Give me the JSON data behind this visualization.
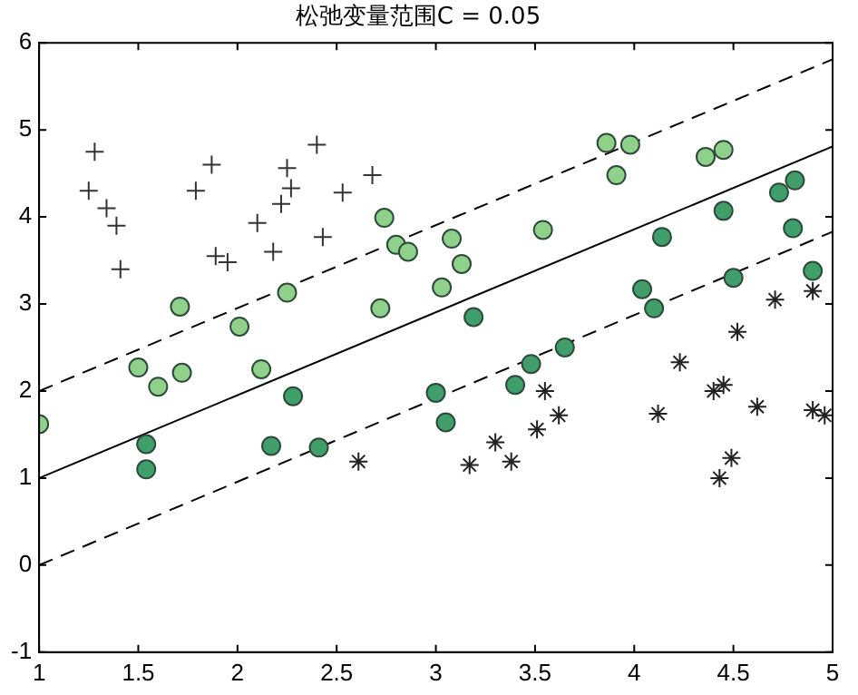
{
  "chart_data": {
    "type": "scatter",
    "title": "松弛变量范围C = 0.05",
    "xlim": [
      1,
      5
    ],
    "xticks": [
      1,
      1.5,
      2,
      2.5,
      3,
      3.5,
      4,
      4.5,
      5
    ],
    "ylim": [
      -1,
      6
    ],
    "yticks": [
      -1,
      0,
      1,
      2,
      3,
      4,
      5,
      6
    ],
    "grid": false,
    "legend": false,
    "series": [
      {
        "marker": "cross",
        "color": "#333333",
        "x": [
          1.28,
          1.25,
          1.34,
          1.39,
          1.41,
          1.87,
          1.79,
          1.89,
          1.95,
          2.1,
          2.18,
          2.25,
          2.27,
          2.22,
          2.4,
          2.43,
          2.53,
          2.68
        ],
        "values": [
          4.75,
          4.3,
          4.1,
          3.9,
          3.4,
          4.6,
          4.3,
          3.55,
          3.48,
          3.93,
          3.6,
          4.56,
          4.33,
          4.15,
          4.83,
          3.77,
          4.28,
          4.48
        ]
      },
      {
        "marker": "circle",
        "color": "#8fd18a",
        "x": [
          1.0,
          1.5,
          1.6,
          1.72,
          1.71,
          2.01,
          2.25,
          2.12,
          2.72,
          2.74,
          2.8,
          2.86,
          3.08,
          3.13,
          3.03,
          3.54,
          3.86,
          3.98,
          3.91,
          4.36,
          4.45
        ],
        "values": [
          1.62,
          2.27,
          2.05,
          2.21,
          2.97,
          2.74,
          3.13,
          2.25,
          2.95,
          3.99,
          3.68,
          3.6,
          3.75,
          3.46,
          3.19,
          3.85,
          4.85,
          4.83,
          4.48,
          4.69,
          4.77
        ]
      },
      {
        "marker": "circle",
        "color": "#3f9e6a",
        "x": [
          3.19,
          4.14,
          4.45,
          4.73,
          4.81,
          4.8,
          4.9,
          4.5,
          4.04,
          4.1,
          1.54,
          1.54,
          2.17,
          2.28,
          2.41,
          3.0,
          3.05,
          3.4,
          3.48,
          3.65
        ],
        "values": [
          2.85,
          3.77,
          4.07,
          4.28,
          4.42,
          3.87,
          3.38,
          3.3,
          3.17,
          2.95,
          1.39,
          1.1,
          1.37,
          1.94,
          1.35,
          1.98,
          1.64,
          2.07,
          2.31,
          2.5
        ]
      },
      {
        "color": "#222222",
        "x": [
          2.61,
          3.17,
          3.3,
          3.38,
          3.51,
          3.55,
          3.62,
          4.12,
          4.23,
          4.4,
          4.45,
          4.49,
          4.43,
          4.52,
          4.62,
          4.9,
          4.96,
          4.71,
          4.9
        ],
        "values": [
          1.19,
          1.15,
          1.41,
          1.19,
          1.56,
          2.0,
          1.72,
          1.74,
          2.33,
          2.0,
          2.07,
          1.23,
          1.0,
          2.68,
          1.82,
          1.78,
          1.72,
          3.05,
          3.15
        ]
      },
      {
        "type": "line",
        "line_style": "solid",
        "color": "#000000",
        "x": [
          1,
          5
        ],
        "values": [
          1,
          4.81
        ]
      },
      {
        "type": "line",
        "line_style": "dashed",
        "color": "#000000",
        "x": [
          1,
          5
        ],
        "values": [
          2,
          5.81
        ]
      },
      {
        "type": "line",
        "line_style": "dashed",
        "color": "#000000",
        "x": [
          1,
          5
        ],
        "values": [
          0,
          3.83
        ]
      }
    ]
  }
}
